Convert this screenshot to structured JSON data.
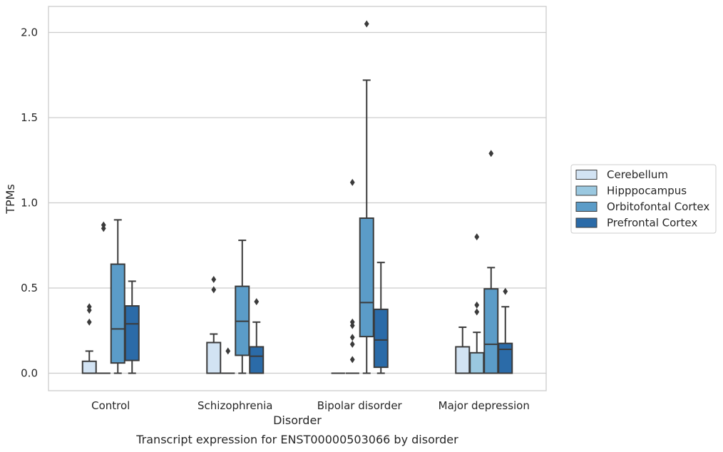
{
  "chart_data": {
    "type": "box",
    "caption": "Transcript expression for ENST00000503066 by disorder",
    "xlabel": "Disorder",
    "ylabel": "TPMs",
    "ylim": [
      -0.1,
      2.15
    ],
    "yticks": [
      "0.0",
      "0.5",
      "1.0",
      "1.5",
      "2.0"
    ],
    "grid": "horizontal",
    "legend_position": "right",
    "categories": [
      "Control",
      "Schizophrenia",
      "Bipolar disorder",
      "Major depression"
    ],
    "series": [
      {
        "name": "Cerebellum",
        "color": "#d2e3f3",
        "boxes": [
          {
            "whisker_low": 0.0,
            "q1": 0.0,
            "median": 0.0,
            "q3": 0.07,
            "whisker_high": 0.13,
            "outliers": [
              0.3,
              0.37,
              0.39
            ]
          },
          {
            "whisker_low": 0.0,
            "q1": 0.0,
            "median": 0.0,
            "q3": 0.18,
            "whisker_high": 0.23,
            "outliers": [
              0.49,
              0.55
            ]
          },
          {
            "whisker_low": 0.0,
            "q1": 0.0,
            "median": 0.0,
            "q3": 0.0,
            "whisker_high": 0.0,
            "outliers": []
          },
          {
            "whisker_low": 0.0,
            "q1": 0.0,
            "median": 0.0,
            "q3": 0.155,
            "whisker_high": 0.27,
            "outliers": []
          }
        ]
      },
      {
        "name": "Hipppocampus",
        "color": "#9ac8e0",
        "boxes": [
          {
            "whisker_low": 0.0,
            "q1": 0.0,
            "median": 0.0,
            "q3": 0.0,
            "whisker_high": 0.0,
            "outliers": [
              0.85,
              0.87
            ]
          },
          {
            "whisker_low": 0.0,
            "q1": 0.0,
            "median": 0.0,
            "q3": 0.0,
            "whisker_high": 0.0,
            "outliers": [
              0.13
            ]
          },
          {
            "whisker_low": 0.0,
            "q1": 0.0,
            "median": 0.0,
            "q3": 0.0,
            "whisker_high": 0.0,
            "outliers": [
              0.08,
              0.17,
              0.21,
              0.28,
              0.3,
              1.12
            ]
          },
          {
            "whisker_low": 0.0,
            "q1": 0.0,
            "median": 0.0,
            "q3": 0.12,
            "whisker_high": 0.24,
            "outliers": [
              0.36,
              0.4,
              0.8
            ]
          }
        ]
      },
      {
        "name": "Orbitofontal Cortex",
        "color": "#5b9cc8",
        "boxes": [
          {
            "whisker_low": 0.0,
            "q1": 0.06,
            "median": 0.26,
            "q3": 0.64,
            "whisker_high": 0.9,
            "outliers": []
          },
          {
            "whisker_low": 0.0,
            "q1": 0.105,
            "median": 0.305,
            "q3": 0.51,
            "whisker_high": 0.78,
            "outliers": []
          },
          {
            "whisker_low": 0.0,
            "q1": 0.215,
            "median": 0.415,
            "q3": 0.91,
            "whisker_high": 1.72,
            "outliers": [
              2.05
            ]
          },
          {
            "whisker_low": 0.0,
            "q1": 0.0,
            "median": 0.17,
            "q3": 0.495,
            "whisker_high": 0.62,
            "outliers": [
              1.29
            ]
          }
        ]
      },
      {
        "name": "Prefrontal Cortex",
        "color": "#2b6ba8",
        "boxes": [
          {
            "whisker_low": 0.0,
            "q1": 0.075,
            "median": 0.29,
            "q3": 0.395,
            "whisker_high": 0.54,
            "outliers": []
          },
          {
            "whisker_low": 0.0,
            "q1": 0.0,
            "median": 0.1,
            "q3": 0.155,
            "whisker_high": 0.3,
            "outliers": [
              0.42
            ]
          },
          {
            "whisker_low": 0.0,
            "q1": 0.035,
            "median": 0.195,
            "q3": 0.375,
            "whisker_high": 0.65,
            "outliers": []
          },
          {
            "whisker_low": 0.0,
            "q1": 0.0,
            "median": 0.14,
            "q3": 0.175,
            "whisker_high": 0.39,
            "outliers": [
              0.48
            ]
          }
        ]
      }
    ]
  }
}
